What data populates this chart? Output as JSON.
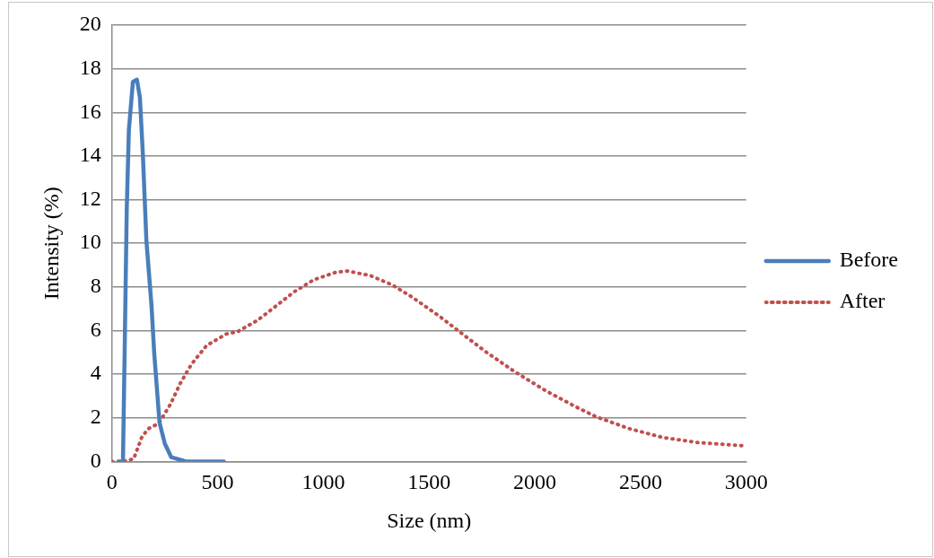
{
  "chart_data": {
    "type": "line",
    "xlabel": "Size (nm)",
    "ylabel": "Intensity (%)",
    "xlim": [
      0,
      3000
    ],
    "xticks": [
      0,
      500,
      1000,
      1500,
      2000,
      2500,
      3000
    ],
    "ylim": [
      0,
      20
    ],
    "yticks": [
      0,
      2,
      4,
      6,
      8,
      10,
      12,
      14,
      16,
      18,
      20
    ],
    "grid": "y",
    "legend": "right",
    "marker": "none",
    "series": [
      {
        "name": "Before",
        "color": "#4a7ebb",
        "line_style": "solid",
        "x": [
          30,
          52,
          61,
          70,
          80,
          99,
          118,
          132,
          146,
          163,
          187,
          200,
          225,
          250,
          280,
          350,
          530
        ],
        "values": [
          0,
          0,
          5.7,
          11.6,
          15.2,
          17.4,
          17.5,
          16.7,
          14.1,
          10.1,
          7.15,
          4.94,
          1.78,
          0.82,
          0.2,
          0,
          0
        ]
      },
      {
        "name": "After",
        "color": "#c0504d",
        "line_style": "dotted",
        "x": [
          0,
          52,
          103,
          140,
          170,
          222,
          277,
          323,
          377,
          447,
          540,
          594,
          687,
          775,
          861,
          955,
          1058,
          1114,
          1222,
          1326,
          1417,
          1551,
          1641,
          1768,
          1904,
          2045,
          2191,
          2290,
          2445,
          2605,
          2769,
          2990
        ],
        "values": [
          0,
          0,
          0.12,
          1.09,
          1.49,
          1.75,
          2.63,
          3.58,
          4.47,
          5.31,
          5.84,
          5.95,
          6.46,
          7.12,
          7.77,
          8.33,
          8.67,
          8.73,
          8.52,
          8.09,
          7.55,
          6.64,
          5.97,
          5.03,
          4.12,
          3.28,
          2.52,
          2.05,
          1.51,
          1.1,
          0.87,
          0.72
        ]
      }
    ]
  }
}
